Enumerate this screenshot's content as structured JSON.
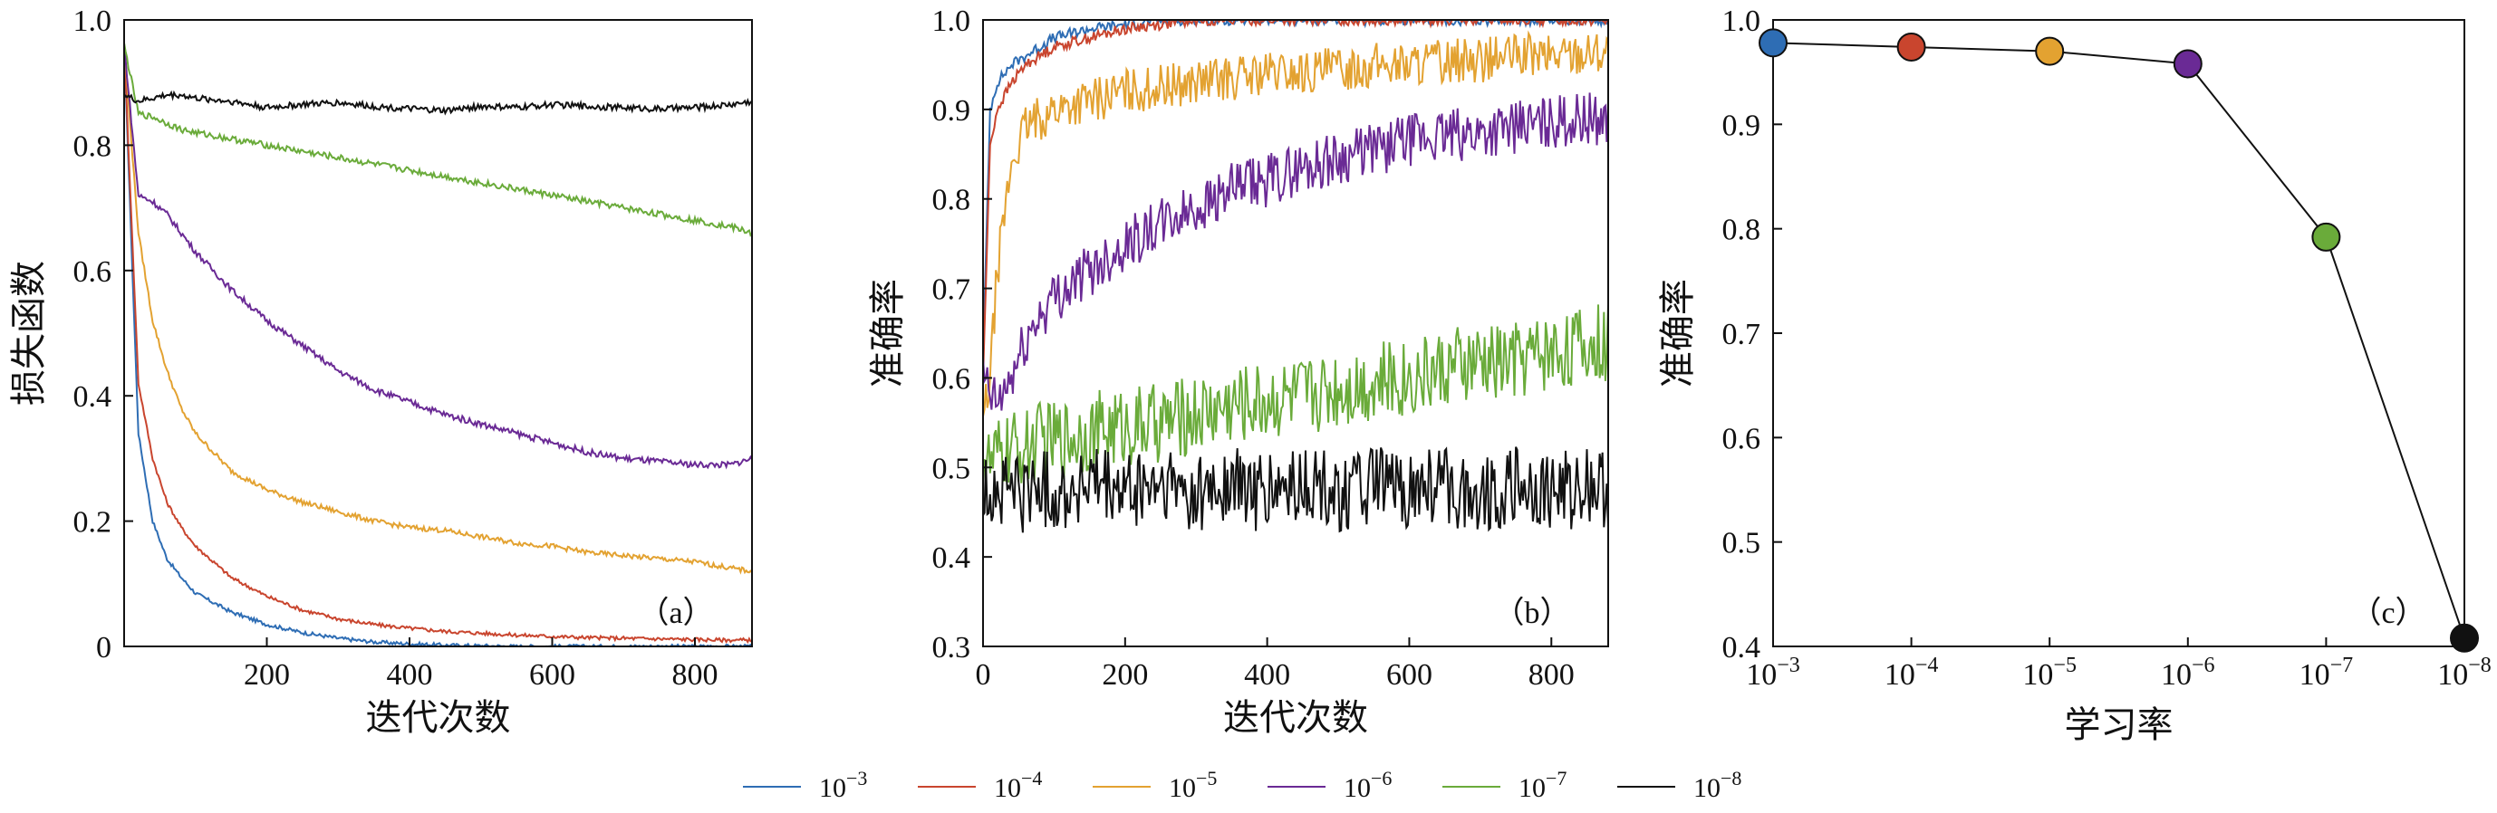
{
  "figure": {
    "colors": {
      "1e-3": "#2e6db4",
      "1e-4": "#c9452e",
      "1e-5": "#e3a231",
      "1e-6": "#6a2a95",
      "1e-7": "#6aab3a",
      "1e-8": "#111111"
    },
    "legend": [
      {
        "key": "1e-3",
        "base": "10",
        "exp": "−3"
      },
      {
        "key": "1e-4",
        "base": "10",
        "exp": "−4"
      },
      {
        "key": "1e-5",
        "base": "10",
        "exp": "−5"
      },
      {
        "key": "1e-6",
        "base": "10",
        "exp": "−6"
      },
      {
        "key": "1e-7",
        "base": "10",
        "exp": "−7"
      },
      {
        "key": "1e-8",
        "base": "10",
        "exp": "−8"
      }
    ]
  },
  "chart_data": [
    {
      "type": "line",
      "panel_label": "（a）",
      "xlabel": "迭代次数",
      "ylabel": "损失函数",
      "xlim": [
        0,
        880
      ],
      "ylim": [
        0,
        1.0
      ],
      "xticks": [
        "200",
        "400",
        "600",
        "800"
      ],
      "yticks": [
        "0",
        "0.2",
        "0.4",
        "0.6",
        "0.8",
        "1.0"
      ],
      "grid": false,
      "x": [
        0,
        20,
        40,
        60,
        80,
        100,
        150,
        200,
        250,
        300,
        350,
        400,
        450,
        500,
        550,
        600,
        650,
        700,
        750,
        800,
        850,
        880
      ],
      "series": [
        {
          "name": "1e-3",
          "values": [
            0.96,
            0.34,
            0.2,
            0.14,
            0.11,
            0.085,
            0.055,
            0.035,
            0.022,
            0.013,
            0.007,
            0.004,
            0.002,
            0.001,
            0.0,
            0.0,
            0.0,
            0.0,
            0.0,
            0.0,
            0.0,
            0.0
          ]
        },
        {
          "name": "1e-4",
          "values": [
            0.96,
            0.42,
            0.3,
            0.23,
            0.19,
            0.16,
            0.11,
            0.08,
            0.058,
            0.044,
            0.035,
            0.029,
            0.024,
            0.021,
            0.018,
            0.016,
            0.014,
            0.013,
            0.012,
            0.011,
            0.01,
            0.01
          ]
        },
        {
          "name": "1e-5",
          "values": [
            0.96,
            0.66,
            0.52,
            0.44,
            0.38,
            0.34,
            0.28,
            0.25,
            0.23,
            0.215,
            0.2,
            0.19,
            0.185,
            0.175,
            0.165,
            0.16,
            0.15,
            0.145,
            0.14,
            0.135,
            0.125,
            0.12
          ]
        },
        {
          "name": "1e-6",
          "values": [
            0.96,
            0.72,
            0.71,
            0.69,
            0.66,
            0.63,
            0.57,
            0.52,
            0.48,
            0.44,
            0.41,
            0.39,
            0.37,
            0.355,
            0.34,
            0.325,
            0.31,
            0.3,
            0.295,
            0.29,
            0.29,
            0.3
          ]
        },
        {
          "name": "1e-7",
          "values": [
            0.96,
            0.85,
            0.845,
            0.835,
            0.825,
            0.82,
            0.81,
            0.8,
            0.79,
            0.78,
            0.77,
            0.76,
            0.75,
            0.74,
            0.73,
            0.72,
            0.71,
            0.7,
            0.69,
            0.68,
            0.67,
            0.66
          ]
        },
        {
          "name": "1e-8",
          "values": [
            0.88,
            0.87,
            0.875,
            0.88,
            0.88,
            0.875,
            0.87,
            0.86,
            0.865,
            0.868,
            0.862,
            0.858,
            0.855,
            0.862,
            0.86,
            0.865,
            0.862,
            0.86,
            0.858,
            0.86,
            0.865,
            0.87
          ]
        }
      ]
    },
    {
      "type": "line",
      "panel_label": "（b）",
      "xlabel": "迭代次数",
      "ylabel": "准确率",
      "xlim": [
        0,
        880
      ],
      "ylim": [
        0.3,
        1.0
      ],
      "xticks": [
        "0",
        "200",
        "400",
        "600",
        "800"
      ],
      "yticks": [
        "0.3",
        "0.4",
        "0.5",
        "0.6",
        "0.7",
        "0.8",
        "0.9",
        "1.0"
      ],
      "grid": false,
      "x": [
        0,
        10,
        20,
        40,
        60,
        80,
        100,
        150,
        200,
        250,
        300,
        350,
        400,
        450,
        500,
        550,
        600,
        650,
        700,
        750,
        800,
        850,
        880
      ],
      "series": [
        {
          "name": "1e-3",
          "values": [
            0.62,
            0.9,
            0.93,
            0.95,
            0.96,
            0.97,
            0.98,
            0.99,
            0.995,
            1.0,
            1.0,
            1.0,
            1.0,
            1.0,
            1.0,
            1.0,
            1.0,
            1.0,
            1.0,
            1.0,
            1.0,
            1.0,
            1.0
          ]
        },
        {
          "name": "1e-4",
          "values": [
            0.6,
            0.86,
            0.9,
            0.93,
            0.95,
            0.96,
            0.97,
            0.98,
            0.99,
            0.995,
            1.0,
            1.0,
            1.0,
            1.0,
            1.0,
            1.0,
            1.0,
            1.0,
            1.0,
            1.0,
            1.0,
            1.0,
            1.0
          ]
        },
        {
          "name": "1e-5",
          "values": [
            0.55,
            0.6,
            0.72,
            0.84,
            0.88,
            0.89,
            0.9,
            0.91,
            0.92,
            0.925,
            0.93,
            0.935,
            0.94,
            0.94,
            0.945,
            0.95,
            0.95,
            0.955,
            0.955,
            0.96,
            0.96,
            0.965,
            0.965
          ]
        },
        {
          "name": "1e-6",
          "values": [
            0.6,
            0.58,
            0.57,
            0.6,
            0.64,
            0.67,
            0.69,
            0.72,
            0.75,
            0.77,
            0.79,
            0.81,
            0.82,
            0.835,
            0.845,
            0.855,
            0.865,
            0.87,
            0.875,
            0.88,
            0.885,
            0.89,
            0.89
          ]
        },
        {
          "name": "1e-7",
          "values": [
            0.52,
            0.5,
            0.51,
            0.52,
            0.52,
            0.53,
            0.53,
            0.54,
            0.545,
            0.55,
            0.56,
            0.57,
            0.575,
            0.58,
            0.59,
            0.595,
            0.6,
            0.61,
            0.615,
            0.62,
            0.63,
            0.635,
            0.64
          ]
        },
        {
          "name": "1e-8",
          "values": [
            0.46,
            0.48,
            0.47,
            0.48,
            0.47,
            0.48,
            0.47,
            0.48,
            0.47,
            0.48,
            0.47,
            0.48,
            0.47,
            0.48,
            0.47,
            0.48,
            0.47,
            0.48,
            0.47,
            0.48,
            0.47,
            0.48,
            0.47
          ]
        }
      ]
    },
    {
      "type": "line",
      "panel_label": "（c）",
      "xlabel": "学习率",
      "ylabel": "准确率",
      "ylim": [
        0.4,
        1.0
      ],
      "yticks": [
        "0.4",
        "0.5",
        "0.6",
        "0.7",
        "0.8",
        "0.9",
        "1.0"
      ],
      "grid": false,
      "categories": [
        {
          "key": "1e-3",
          "base": "10",
          "exp": "−3"
        },
        {
          "key": "1e-4",
          "base": "10",
          "exp": "−4"
        },
        {
          "key": "1e-5",
          "base": "10",
          "exp": "−5"
        },
        {
          "key": "1e-6",
          "base": "10",
          "exp": "−6"
        },
        {
          "key": "1e-7",
          "base": "10",
          "exp": "−7"
        },
        {
          "key": "1e-8",
          "base": "10",
          "exp": "−8"
        }
      ],
      "values": [
        0.978,
        0.974,
        0.97,
        0.958,
        0.792,
        0.408
      ]
    }
  ]
}
